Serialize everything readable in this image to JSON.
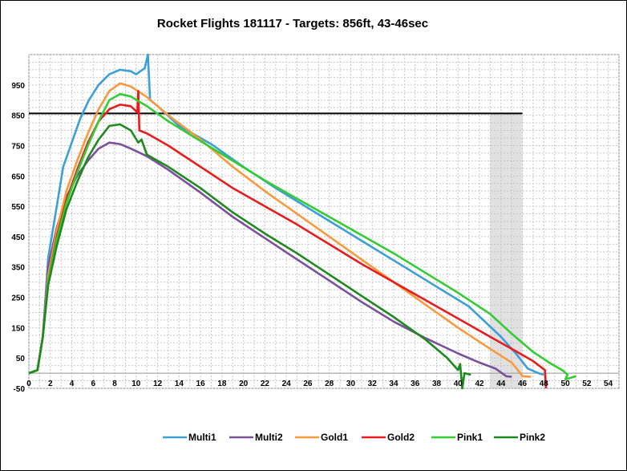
{
  "chart_data": {
    "type": "line",
    "title": "Rocket Flights 181117 - Targets: 856ft, 43-46sec",
    "xlabel": "",
    "ylabel": "",
    "xlim": [
      0,
      55
    ],
    "ylim": [
      -50,
      1050
    ],
    "x_ticks": [
      0,
      2,
      4,
      6,
      8,
      10,
      12,
      14,
      16,
      18,
      20,
      22,
      24,
      26,
      28,
      30,
      32,
      34,
      36,
      38,
      40,
      42,
      44,
      46,
      48,
      50,
      52,
      54
    ],
    "y_ticks": [
      -50,
      50,
      150,
      250,
      350,
      450,
      550,
      650,
      750,
      850,
      950
    ],
    "grid": true,
    "legend_position": "bottom",
    "target_altitude": 856,
    "target_time_window": [
      43,
      46
    ],
    "series": [
      {
        "name": "Multi1",
        "color": "#3c9fd6",
        "points": [
          [
            0,
            0
          ],
          [
            0.8,
            10
          ],
          [
            1.3,
            120
          ],
          [
            1.8,
            380
          ],
          [
            2.6,
            550
          ],
          [
            3.2,
            680
          ],
          [
            4,
            760
          ],
          [
            4.8,
            840
          ],
          [
            5.6,
            900
          ],
          [
            6.5,
            950
          ],
          [
            7.5,
            985
          ],
          [
            8.5,
            1000
          ],
          [
            9.5,
            995
          ],
          [
            10,
            985
          ],
          [
            10.8,
            1005
          ],
          [
            11.1,
            1050
          ],
          [
            11.3,
            900
          ],
          [
            12,
            880
          ],
          [
            14,
            815
          ],
          [
            17,
            755
          ],
          [
            20,
            680
          ],
          [
            23,
            610
          ],
          [
            26,
            545
          ],
          [
            29,
            480
          ],
          [
            32,
            415
          ],
          [
            35,
            350
          ],
          [
            38,
            285
          ],
          [
            41,
            220
          ],
          [
            44,
            120
          ],
          [
            45.5,
            60
          ],
          [
            46.5,
            15
          ],
          [
            47.5,
            0
          ],
          [
            48,
            -5
          ]
        ]
      },
      {
        "name": "Multi2",
        "color": "#7a4f9c",
        "points": [
          [
            0,
            0
          ],
          [
            0.8,
            10
          ],
          [
            1.3,
            120
          ],
          [
            1.8,
            350
          ],
          [
            2.6,
            480
          ],
          [
            3.5,
            580
          ],
          [
            4.5,
            650
          ],
          [
            5.5,
            700
          ],
          [
            6.5,
            740
          ],
          [
            7.5,
            760
          ],
          [
            8.5,
            755
          ],
          [
            9.5,
            740
          ],
          [
            11,
            715
          ],
          [
            13,
            670
          ],
          [
            16,
            595
          ],
          [
            19,
            515
          ],
          [
            22,
            445
          ],
          [
            25,
            375
          ],
          [
            28,
            305
          ],
          [
            31,
            235
          ],
          [
            34,
            170
          ],
          [
            37,
            115
          ],
          [
            40,
            65
          ],
          [
            42,
            35
          ],
          [
            43.5,
            15
          ],
          [
            44.5,
            -10
          ],
          [
            45,
            -12
          ]
        ]
      },
      {
        "name": "Gold1",
        "color": "#f79a3b",
        "points": [
          [
            0,
            0
          ],
          [
            0.8,
            10
          ],
          [
            1.3,
            120
          ],
          [
            1.8,
            320
          ],
          [
            2.6,
            470
          ],
          [
            3.5,
            600
          ],
          [
            4.5,
            700
          ],
          [
            5.5,
            790
          ],
          [
            6.5,
            870
          ],
          [
            7.5,
            930
          ],
          [
            8.5,
            955
          ],
          [
            9.5,
            945
          ],
          [
            11,
            910
          ],
          [
            13,
            850
          ],
          [
            16,
            770
          ],
          [
            19,
            680
          ],
          [
            22,
            600
          ],
          [
            25,
            525
          ],
          [
            28,
            450
          ],
          [
            31,
            375
          ],
          [
            34,
            300
          ],
          [
            37,
            225
          ],
          [
            40,
            150
          ],
          [
            43,
            80
          ],
          [
            45,
            35
          ],
          [
            45.7,
            5
          ],
          [
            46,
            -10
          ],
          [
            46.8,
            -12
          ]
        ]
      },
      {
        "name": "Gold2",
        "color": "#e81c1c",
        "points": [
          [
            0,
            0
          ],
          [
            0.8,
            10
          ],
          [
            1.3,
            120
          ],
          [
            1.8,
            300
          ],
          [
            2.6,
            450
          ],
          [
            3.5,
            570
          ],
          [
            4.5,
            670
          ],
          [
            5.5,
            760
          ],
          [
            6.5,
            830
          ],
          [
            7.5,
            870
          ],
          [
            8.5,
            885
          ],
          [
            9.5,
            880
          ],
          [
            10.1,
            860
          ],
          [
            10.2,
            930
          ],
          [
            10.3,
            800
          ],
          [
            11,
            790
          ],
          [
            13,
            750
          ],
          [
            16,
            680
          ],
          [
            19,
            610
          ],
          [
            22,
            550
          ],
          [
            25,
            490
          ],
          [
            28,
            425
          ],
          [
            31,
            360
          ],
          [
            34,
            300
          ],
          [
            37,
            240
          ],
          [
            40,
            180
          ],
          [
            43,
            120
          ],
          [
            45,
            80
          ],
          [
            47,
            40
          ],
          [
            48.1,
            10
          ],
          [
            48.2,
            -50
          ]
        ]
      },
      {
        "name": "Pink1",
        "color": "#33cc33",
        "points": [
          [
            0,
            0
          ],
          [
            0.8,
            10
          ],
          [
            1.3,
            120
          ],
          [
            1.8,
            300
          ],
          [
            2.6,
            440
          ],
          [
            3.5,
            560
          ],
          [
            4.5,
            660
          ],
          [
            5.5,
            750
          ],
          [
            6.5,
            830
          ],
          [
            7.5,
            900
          ],
          [
            8.5,
            920
          ],
          [
            9.5,
            912
          ],
          [
            11,
            880
          ],
          [
            13,
            830
          ],
          [
            16,
            765
          ],
          [
            19,
            700
          ],
          [
            22,
            635
          ],
          [
            25,
            575
          ],
          [
            28,
            515
          ],
          [
            31,
            455
          ],
          [
            34,
            395
          ],
          [
            37,
            330
          ],
          [
            40,
            265
          ],
          [
            43,
            195
          ],
          [
            45,
            130
          ],
          [
            47,
            70
          ],
          [
            48.5,
            35
          ],
          [
            49.8,
            8
          ],
          [
            50.2,
            -5
          ],
          [
            50,
            -20
          ],
          [
            51,
            -10
          ]
        ]
      },
      {
        "name": "Pink2",
        "color": "#1e8a1e",
        "points": [
          [
            0,
            0
          ],
          [
            0.8,
            10
          ],
          [
            1.3,
            120
          ],
          [
            1.8,
            290
          ],
          [
            2.6,
            420
          ],
          [
            3.5,
            540
          ],
          [
            4.5,
            630
          ],
          [
            5.5,
            710
          ],
          [
            6.5,
            770
          ],
          [
            7.5,
            815
          ],
          [
            8.5,
            820
          ],
          [
            9.5,
            800
          ],
          [
            10.2,
            760
          ],
          [
            10.5,
            770
          ],
          [
            11,
            720
          ],
          [
            13,
            680
          ],
          [
            16,
            610
          ],
          [
            19,
            530
          ],
          [
            22,
            460
          ],
          [
            25,
            395
          ],
          [
            28,
            325
          ],
          [
            31,
            255
          ],
          [
            34,
            185
          ],
          [
            37,
            110
          ],
          [
            39,
            50
          ],
          [
            40,
            10
          ],
          [
            40.2,
            30
          ],
          [
            40.4,
            -50
          ],
          [
            40.6,
            0
          ],
          [
            41.2,
            -5
          ]
        ]
      }
    ],
    "reference_lines": [
      {
        "type": "horizontal",
        "y": 856,
        "color": "#000000"
      }
    ]
  }
}
